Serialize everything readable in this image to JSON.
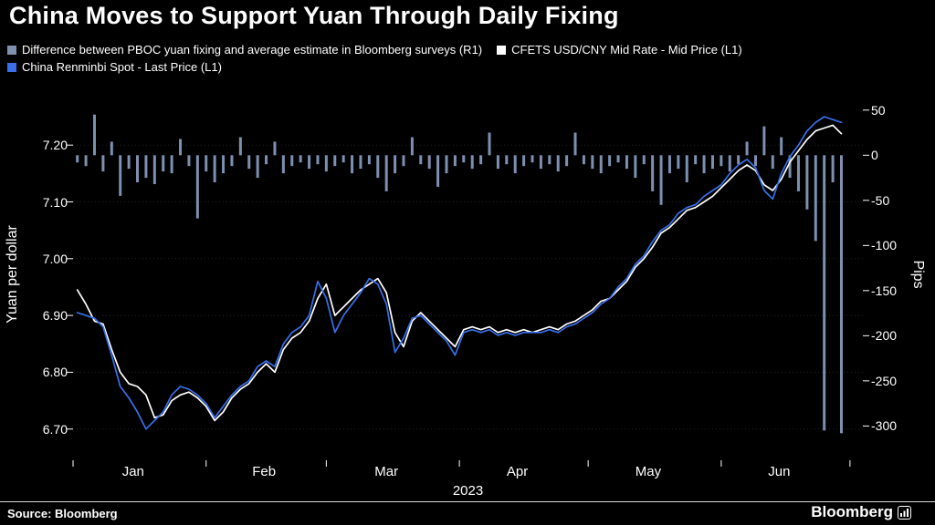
{
  "title": "China Moves to Support Yuan Through Daily Fixing",
  "legend": [
    {
      "label": "Difference between PBOC yuan fixing and average estimate in Bloomberg surveys (R1)",
      "color": "#7d90b0"
    },
    {
      "label": "CFETS USD/CNY Mid Rate - Mid Price (L1)",
      "color": "#ffffff"
    },
    {
      "label": "China Renminbi Spot - Last Price (L1)",
      "color": "#3a6fe8"
    }
  ],
  "source": "Source:  Bloomberg",
  "brand": "Bloomberg",
  "colors": {
    "background": "#000000",
    "bars": "#7d90b0",
    "mid_rate_line": "#ffffff",
    "spot_line": "#3a6fe8"
  },
  "chart_data": {
    "type": "mixed",
    "title": "China Moves to Support Yuan Through Daily Fixing",
    "x_axis": {
      "year_label": "2023",
      "months": [
        "Jan",
        "Feb",
        "Mar",
        "Apr",
        "May",
        "Jun"
      ],
      "month_center_days": [
        15,
        45.5,
        74,
        104.5,
        135,
        165.5
      ],
      "month_start_days": [
        1,
        32,
        60,
        91,
        121,
        152,
        182
      ],
      "xlim": [
        1,
        185
      ]
    },
    "left_axis": {
      "label": "Yuan per dollar",
      "tick_labels": [
        "7.20",
        "7.10",
        "7.00",
        "6.90",
        "6.80",
        "6.70"
      ],
      "tick_values": [
        7.2,
        7.1,
        7.0,
        6.9,
        6.8,
        6.7
      ],
      "ylim": [
        6.645,
        7.295
      ]
    },
    "right_axis": {
      "label": "Pips",
      "tick_labels": [
        "50",
        "0",
        "-50",
        "-100",
        "-150",
        "-200",
        "-250",
        "-300"
      ],
      "tick_values": [
        50,
        0,
        -50,
        -100,
        -150,
        -200,
        -250,
        -300
      ],
      "ylim": [
        -338,
        71
      ]
    },
    "series": [
      {
        "name": "Difference between PBOC yuan fixing and average estimate in Bloomberg surveys",
        "type": "bar",
        "axis": "right",
        "color": "#7d90b0",
        "points": [
          [
            2,
            -8
          ],
          [
            4,
            -12
          ],
          [
            6,
            45
          ],
          [
            8,
            -18
          ],
          [
            10,
            15
          ],
          [
            12,
            -45
          ],
          [
            14,
            -15
          ],
          [
            16,
            -30
          ],
          [
            18,
            -25
          ],
          [
            20,
            -32
          ],
          [
            22,
            -18
          ],
          [
            24,
            -20
          ],
          [
            26,
            18
          ],
          [
            28,
            -12
          ],
          [
            30,
            -70
          ],
          [
            32,
            -18
          ],
          [
            34,
            -30
          ],
          [
            36,
            -20
          ],
          [
            38,
            -12
          ],
          [
            40,
            20
          ],
          [
            42,
            -15
          ],
          [
            44,
            -25
          ],
          [
            46,
            -10
          ],
          [
            48,
            15
          ],
          [
            50,
            -20
          ],
          [
            52,
            -12
          ],
          [
            54,
            -8
          ],
          [
            56,
            -15
          ],
          [
            58,
            -10
          ],
          [
            60,
            -18
          ],
          [
            62,
            -12
          ],
          [
            64,
            -8
          ],
          [
            66,
            -20
          ],
          [
            68,
            -15
          ],
          [
            70,
            -10
          ],
          [
            72,
            -25
          ],
          [
            74,
            -40
          ],
          [
            76,
            -20
          ],
          [
            78,
            -12
          ],
          [
            80,
            20
          ],
          [
            82,
            -10
          ],
          [
            84,
            -15
          ],
          [
            86,
            -35
          ],
          [
            88,
            -20
          ],
          [
            90,
            -12
          ],
          [
            92,
            -8
          ],
          [
            94,
            -15
          ],
          [
            96,
            -10
          ],
          [
            98,
            25
          ],
          [
            100,
            -15
          ],
          [
            102,
            -10
          ],
          [
            104,
            -20
          ],
          [
            106,
            -12
          ],
          [
            108,
            -8
          ],
          [
            110,
            -15
          ],
          [
            112,
            -10
          ],
          [
            114,
            -18
          ],
          [
            116,
            -12
          ],
          [
            118,
            25
          ],
          [
            120,
            -10
          ],
          [
            122,
            -15
          ],
          [
            124,
            -20
          ],
          [
            126,
            -12
          ],
          [
            128,
            -8
          ],
          [
            130,
            -15
          ],
          [
            132,
            -25
          ],
          [
            134,
            -10
          ],
          [
            136,
            -40
          ],
          [
            138,
            -55
          ],
          [
            140,
            -20
          ],
          [
            142,
            -15
          ],
          [
            144,
            -30
          ],
          [
            146,
            -10
          ],
          [
            148,
            -20
          ],
          [
            150,
            -15
          ],
          [
            152,
            -12
          ],
          [
            154,
            -18
          ],
          [
            156,
            -10
          ],
          [
            158,
            15
          ],
          [
            160,
            -12
          ],
          [
            162,
            32
          ],
          [
            164,
            -15
          ],
          [
            166,
            20
          ],
          [
            168,
            -25
          ],
          [
            170,
            -40
          ],
          [
            172,
            -60
          ],
          [
            174,
            -95
          ],
          [
            176,
            -305
          ],
          [
            178,
            -30
          ],
          [
            180,
            -308
          ]
        ]
      },
      {
        "name": "CFETS USD/CNY Mid Rate - Mid Price",
        "type": "line",
        "axis": "left",
        "color": "#ffffff",
        "points": [
          [
            2,
            6.945
          ],
          [
            4,
            6.92
          ],
          [
            6,
            6.89
          ],
          [
            8,
            6.885
          ],
          [
            10,
            6.84
          ],
          [
            12,
            6.8
          ],
          [
            14,
            6.78
          ],
          [
            16,
            6.775
          ],
          [
            18,
            6.76
          ],
          [
            20,
            6.72
          ],
          [
            22,
            6.725
          ],
          [
            24,
            6.75
          ],
          [
            26,
            6.76
          ],
          [
            28,
            6.765
          ],
          [
            30,
            6.755
          ],
          [
            32,
            6.74
          ],
          [
            34,
            6.715
          ],
          [
            36,
            6.73
          ],
          [
            38,
            6.755
          ],
          [
            40,
            6.77
          ],
          [
            42,
            6.78
          ],
          [
            44,
            6.8
          ],
          [
            46,
            6.815
          ],
          [
            48,
            6.8
          ],
          [
            50,
            6.84
          ],
          [
            52,
            6.86
          ],
          [
            54,
            6.87
          ],
          [
            56,
            6.89
          ],
          [
            58,
            6.93
          ],
          [
            60,
            6.955
          ],
          [
            62,
            6.9
          ],
          [
            64,
            6.915
          ],
          [
            66,
            6.93
          ],
          [
            68,
            6.945
          ],
          [
            70,
            6.955
          ],
          [
            72,
            6.965
          ],
          [
            74,
            6.94
          ],
          [
            76,
            6.87
          ],
          [
            78,
            6.845
          ],
          [
            80,
            6.89
          ],
          [
            82,
            6.905
          ],
          [
            84,
            6.89
          ],
          [
            86,
            6.875
          ],
          [
            88,
            6.86
          ],
          [
            90,
            6.845
          ],
          [
            92,
            6.875
          ],
          [
            94,
            6.88
          ],
          [
            96,
            6.875
          ],
          [
            98,
            6.88
          ],
          [
            100,
            6.87
          ],
          [
            102,
            6.875
          ],
          [
            104,
            6.87
          ],
          [
            106,
            6.875
          ],
          [
            108,
            6.87
          ],
          [
            110,
            6.875
          ],
          [
            112,
            6.88
          ],
          [
            114,
            6.875
          ],
          [
            116,
            6.885
          ],
          [
            118,
            6.89
          ],
          [
            120,
            6.9
          ],
          [
            122,
            6.91
          ],
          [
            124,
            6.925
          ],
          [
            126,
            6.93
          ],
          [
            128,
            6.945
          ],
          [
            130,
            6.96
          ],
          [
            132,
            6.985
          ],
          [
            134,
            7.0
          ],
          [
            136,
            7.02
          ],
          [
            138,
            7.045
          ],
          [
            140,
            7.055
          ],
          [
            142,
            7.07
          ],
          [
            144,
            7.085
          ],
          [
            146,
            7.09
          ],
          [
            148,
            7.1
          ],
          [
            150,
            7.11
          ],
          [
            152,
            7.125
          ],
          [
            154,
            7.14
          ],
          [
            156,
            7.155
          ],
          [
            158,
            7.165
          ],
          [
            160,
            7.155
          ],
          [
            162,
            7.13
          ],
          [
            164,
            7.12
          ],
          [
            166,
            7.14
          ],
          [
            168,
            7.17
          ],
          [
            170,
            7.19
          ],
          [
            172,
            7.21
          ],
          [
            174,
            7.225
          ],
          [
            176,
            7.23
          ],
          [
            178,
            7.235
          ],
          [
            180,
            7.22
          ]
        ]
      },
      {
        "name": "China Renminbi Spot - Last Price",
        "type": "line",
        "axis": "left",
        "color": "#3a6fe8",
        "points": [
          [
            2,
            6.905
          ],
          [
            4,
            6.9
          ],
          [
            6,
            6.895
          ],
          [
            8,
            6.88
          ],
          [
            10,
            6.83
          ],
          [
            12,
            6.775
          ],
          [
            14,
            6.755
          ],
          [
            16,
            6.73
          ],
          [
            18,
            6.7
          ],
          [
            20,
            6.715
          ],
          [
            22,
            6.73
          ],
          [
            24,
            6.76
          ],
          [
            26,
            6.775
          ],
          [
            28,
            6.77
          ],
          [
            30,
            6.76
          ],
          [
            32,
            6.745
          ],
          [
            34,
            6.72
          ],
          [
            36,
            6.74
          ],
          [
            38,
            6.76
          ],
          [
            40,
            6.775
          ],
          [
            42,
            6.785
          ],
          [
            44,
            6.81
          ],
          [
            46,
            6.82
          ],
          [
            48,
            6.81
          ],
          [
            50,
            6.85
          ],
          [
            52,
            6.87
          ],
          [
            54,
            6.88
          ],
          [
            56,
            6.9
          ],
          [
            58,
            6.96
          ],
          [
            60,
            6.93
          ],
          [
            62,
            6.87
          ],
          [
            64,
            6.9
          ],
          [
            66,
            6.92
          ],
          [
            68,
            6.94
          ],
          [
            70,
            6.965
          ],
          [
            72,
            6.955
          ],
          [
            74,
            6.92
          ],
          [
            76,
            6.835
          ],
          [
            78,
            6.86
          ],
          [
            80,
            6.895
          ],
          [
            82,
            6.9
          ],
          [
            84,
            6.885
          ],
          [
            86,
            6.87
          ],
          [
            88,
            6.855
          ],
          [
            90,
            6.83
          ],
          [
            92,
            6.87
          ],
          [
            94,
            6.875
          ],
          [
            96,
            6.87
          ],
          [
            98,
            6.875
          ],
          [
            100,
            6.865
          ],
          [
            102,
            6.87
          ],
          [
            104,
            6.865
          ],
          [
            106,
            6.87
          ],
          [
            108,
            6.87
          ],
          [
            110,
            6.87
          ],
          [
            112,
            6.875
          ],
          [
            114,
            6.87
          ],
          [
            116,
            6.88
          ],
          [
            118,
            6.885
          ],
          [
            120,
            6.895
          ],
          [
            122,
            6.905
          ],
          [
            124,
            6.92
          ],
          [
            126,
            6.93
          ],
          [
            128,
            6.95
          ],
          [
            130,
            6.965
          ],
          [
            132,
            6.99
          ],
          [
            134,
            7.005
          ],
          [
            136,
            7.03
          ],
          [
            138,
            7.05
          ],
          [
            140,
            7.06
          ],
          [
            142,
            7.08
          ],
          [
            144,
            7.09
          ],
          [
            146,
            7.095
          ],
          [
            148,
            7.11
          ],
          [
            150,
            7.12
          ],
          [
            152,
            7.13
          ],
          [
            154,
            7.15
          ],
          [
            156,
            7.165
          ],
          [
            158,
            7.175
          ],
          [
            160,
            7.16
          ],
          [
            162,
            7.12
          ],
          [
            164,
            7.105
          ],
          [
            166,
            7.15
          ],
          [
            168,
            7.18
          ],
          [
            170,
            7.2
          ],
          [
            172,
            7.225
          ],
          [
            174,
            7.24
          ],
          [
            176,
            7.25
          ],
          [
            178,
            7.245
          ],
          [
            180,
            7.24
          ]
        ]
      }
    ]
  }
}
